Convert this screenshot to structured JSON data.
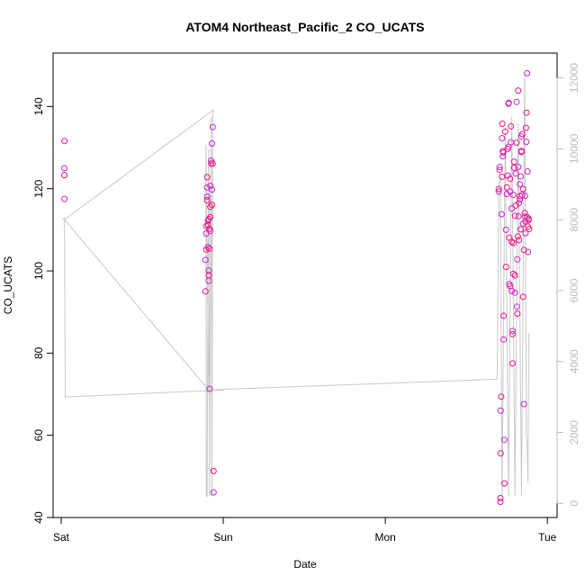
{
  "chart_data": {
    "type": "scatter",
    "title": "ATOM4 Northeast_Pacific_2 CO_UCATS",
    "xlabel": "Date",
    "ylabel": "CO_UCATS",
    "x_axis": {
      "unit": "days",
      "range": [
        -0.05,
        3.06
      ],
      "ticks": [
        {
          "value": 0,
          "label": "Sat"
        },
        {
          "value": 1,
          "label": "Sun"
        },
        {
          "value": 2,
          "label": "Mon"
        },
        {
          "value": 3,
          "label": "Tue"
        }
      ]
    },
    "y_axis": {
      "range": [
        40,
        153
      ],
      "ticks": [
        40,
        60,
        80,
        100,
        120,
        140
      ]
    },
    "secondary_y_axis": {
      "range": [
        -400,
        12700
      ],
      "ticks": [
        0,
        2000,
        4000,
        6000,
        8000,
        10000,
        12000
      ],
      "color": "#bbbbbb"
    },
    "grid": false,
    "legend": "none",
    "point_colors": [
      "#ee1177",
      "#cc22cc"
    ],
    "line_color": "#c8c8c8",
    "series": [
      {
        "kind": "points",
        "points": [
          [
            0.02,
            131.6
          ],
          [
            0.02,
            125.0
          ],
          [
            0.02,
            123.3
          ],
          [
            0.02,
            117.5
          ],
          [
            0.89,
            95.0
          ],
          [
            0.89,
            102.7
          ],
          [
            0.895,
            105.2
          ],
          [
            0.895,
            109.1
          ],
          [
            0.895,
            110.9
          ],
          [
            0.9,
            118.1
          ],
          [
            0.9,
            117.2
          ],
          [
            0.9,
            120.3
          ],
          [
            0.9,
            122.8
          ],
          [
            0.905,
            105.8
          ],
          [
            0.905,
            111.2
          ],
          [
            0.905,
            112.2
          ],
          [
            0.91,
            112.6
          ],
          [
            0.91,
            100.1
          ],
          [
            0.91,
            98.9
          ],
          [
            0.91,
            97.6
          ],
          [
            0.915,
            105.4
          ],
          [
            0.915,
            71.3
          ],
          [
            0.915,
            110.2
          ],
          [
            0.92,
            109.7
          ],
          [
            0.92,
            115.6
          ],
          [
            0.92,
            120.7
          ],
          [
            0.92,
            113.1
          ],
          [
            0.925,
            126.8
          ],
          [
            0.925,
            126.1
          ],
          [
            0.93,
            131.0
          ],
          [
            0.93,
            116.1
          ],
          [
            0.93,
            119.8
          ],
          [
            0.935,
            126.1
          ],
          [
            0.935,
            135.0
          ],
          [
            0.94,
            51.3
          ],
          [
            0.94,
            46.1
          ],
          [
            2.7,
            119.9
          ],
          [
            2.7,
            119.3
          ],
          [
            2.705,
            124.6
          ],
          [
            2.705,
            125.3
          ],
          [
            2.71,
            44.7
          ],
          [
            2.71,
            43.8
          ],
          [
            2.712,
            55.6
          ],
          [
            2.712,
            66.0
          ],
          [
            2.715,
            69.4
          ],
          [
            2.718,
            113.8
          ],
          [
            2.72,
            122.9
          ],
          [
            2.72,
            132.3
          ],
          [
            2.722,
            135.8
          ],
          [
            2.725,
            127.9
          ],
          [
            2.725,
            129.1
          ],
          [
            2.728,
            128.8
          ],
          [
            2.73,
            89.1
          ],
          [
            2.73,
            83.3
          ],
          [
            2.735,
            48.3
          ],
          [
            2.735,
            58.9
          ],
          [
            2.74,
            133.9
          ],
          [
            2.745,
            110.0
          ],
          [
            2.745,
            101.0
          ],
          [
            2.75,
            118.7
          ],
          [
            2.75,
            120.3
          ],
          [
            2.755,
            123.2
          ],
          [
            2.755,
            129.7
          ],
          [
            2.76,
            130.2
          ],
          [
            2.76,
            140.7
          ],
          [
            2.762,
            140.9
          ],
          [
            2.765,
            108.1
          ],
          [
            2.765,
            96.8
          ],
          [
            2.77,
            96.3
          ],
          [
            2.77,
            119.3
          ],
          [
            2.77,
            122.4
          ],
          [
            2.775,
            131.3
          ],
          [
            2.775,
            135.2
          ],
          [
            2.78,
            95.1
          ],
          [
            2.78,
            107.1
          ],
          [
            2.78,
            115.2
          ],
          [
            2.785,
            77.5
          ],
          [
            2.785,
            85.4
          ],
          [
            2.785,
            84.6
          ],
          [
            2.79,
            99.3
          ],
          [
            2.79,
            106.8
          ],
          [
            2.79,
            118.5
          ],
          [
            2.795,
            125.1
          ],
          [
            2.795,
            126.6
          ],
          [
            2.8,
            98.9
          ],
          [
            2.8,
            94.7
          ],
          [
            2.8,
            113.4
          ],
          [
            2.805,
            123.7
          ],
          [
            2.805,
            115.9
          ],
          [
            2.81,
            141.1
          ],
          [
            2.81,
            131.2
          ],
          [
            2.812,
            91.3
          ],
          [
            2.815,
            89.6
          ],
          [
            2.815,
            102.8
          ],
          [
            2.818,
            108.4
          ],
          [
            2.82,
            125.3
          ],
          [
            2.82,
            143.9
          ],
          [
            2.822,
            113.3
          ],
          [
            2.825,
            107.5
          ],
          [
            2.825,
            116.5
          ],
          [
            2.83,
            118.2
          ],
          [
            2.83,
            121.1
          ],
          [
            2.83,
            117.4
          ],
          [
            2.835,
            123.0
          ],
          [
            2.835,
            110.1
          ],
          [
            2.84,
            128.9
          ],
          [
            2.84,
            129.2
          ],
          [
            2.84,
            132.7
          ],
          [
            2.845,
            133.3
          ],
          [
            2.845,
            118.5
          ],
          [
            2.85,
            119.9
          ],
          [
            2.85,
            111.5
          ],
          [
            2.85,
            93.7
          ],
          [
            2.855,
            67.6
          ],
          [
            2.855,
            105.1
          ],
          [
            2.86,
            113.2
          ],
          [
            2.86,
            114.1
          ],
          [
            2.862,
            118.3
          ],
          [
            2.865,
            112.0
          ],
          [
            2.865,
            109.2
          ],
          [
            2.868,
            134.8
          ],
          [
            2.87,
            131.4
          ],
          [
            2.872,
            138.5
          ],
          [
            2.875,
            148.1
          ],
          [
            2.875,
            113.1
          ],
          [
            2.878,
            124.2
          ],
          [
            2.88,
            110.8
          ],
          [
            2.88,
            104.6
          ],
          [
            2.885,
            112.4
          ],
          [
            2.885,
            112.7
          ],
          [
            2.888,
            110.2
          ]
        ]
      },
      {
        "kind": "line",
        "axis": "secondary",
        "points": [
          [
            0.01,
            8000
          ],
          [
            0.02,
            8050
          ],
          [
            0.025,
            3000
          ],
          [
            1.0,
            3200
          ],
          [
            0.91,
            3200
          ],
          [
            0.893,
            10100
          ],
          [
            0.895,
            200
          ],
          [
            0.9,
            200
          ],
          [
            0.905,
            6000
          ],
          [
            0.91,
            10000
          ],
          [
            0.915,
            200
          ],
          [
            0.92,
            6000
          ],
          [
            0.925,
            10900
          ],
          [
            0.93,
            200
          ],
          [
            0.935,
            10950
          ],
          [
            0.94,
            11100
          ],
          [
            0.02,
            8000
          ],
          [
            0.91,
            3200
          ],
          [
            2.69,
            3500
          ],
          [
            2.7,
            9000
          ],
          [
            2.71,
            9200
          ],
          [
            2.72,
            200
          ],
          [
            2.74,
            10600
          ],
          [
            2.76,
            200
          ],
          [
            2.78,
            10900
          ],
          [
            2.8,
            200
          ],
          [
            2.82,
            10700
          ],
          [
            2.84,
            200
          ],
          [
            2.86,
            12150
          ],
          [
            2.87,
            1900
          ],
          [
            2.875,
            1700
          ],
          [
            2.88,
            600
          ],
          [
            2.885,
            4800
          ]
        ]
      }
    ]
  }
}
